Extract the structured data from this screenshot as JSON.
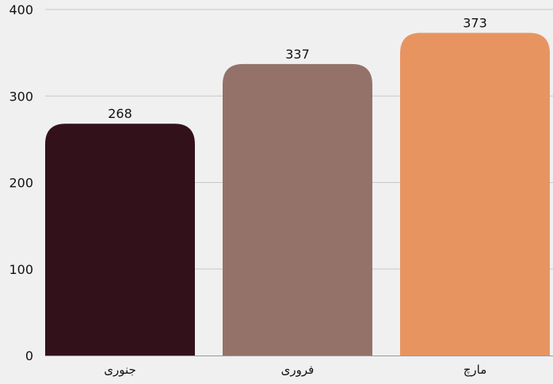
{
  "chart_data": {
    "type": "bar",
    "categories": [
      "جنوری",
      "فروری",
      "مارچ"
    ],
    "values": [
      268,
      337,
      373
    ],
    "colors": [
      "#33111a",
      "#94726a",
      "#e89461"
    ],
    "ylim": [
      0,
      400
    ],
    "yticks": [
      0,
      100,
      200,
      300,
      400
    ],
    "grid": true,
    "grid_color": "#c8c8c8",
    "axis_color": "#9a9a9a",
    "data_labels": [
      "268",
      "337",
      "373"
    ],
    "ytick_labels": [
      "0",
      "100",
      "200",
      "300",
      "400"
    ]
  }
}
